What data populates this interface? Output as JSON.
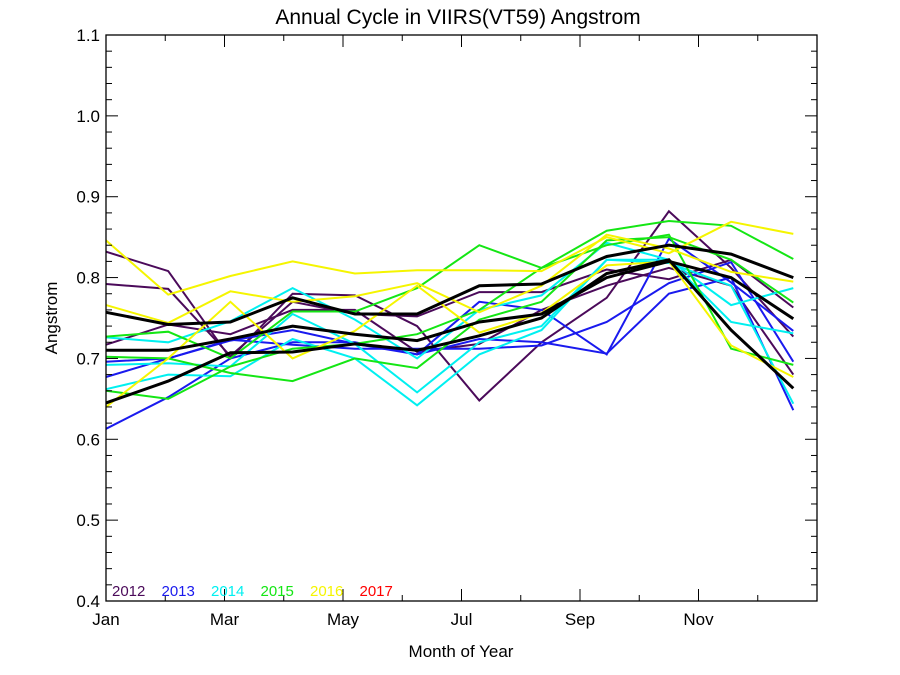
{
  "chart_data": {
    "type": "line",
    "title": "Annual Cycle in VIIRS(VT59) Angstrom",
    "xlabel": "Month of Year",
    "ylabel": "Angstrom",
    "ylim": [
      0.4,
      1.1
    ],
    "xlim": [
      0,
      12
    ],
    "yticks": [
      {
        "value": 0.4,
        "label": "0.4"
      },
      {
        "value": 0.5,
        "label": "0.5"
      },
      {
        "value": 0.6,
        "label": "0.6"
      },
      {
        "value": 0.7,
        "label": "0.7"
      },
      {
        "value": 0.8,
        "label": "0.8"
      },
      {
        "value": 0.9,
        "label": "0.9"
      },
      {
        "value": 1.0,
        "label": "1.0"
      },
      {
        "value": 1.1,
        "label": "1.1"
      }
    ],
    "xticks": [
      {
        "value": 0,
        "label": "Jan"
      },
      {
        "value": 2,
        "label": "Mar"
      },
      {
        "value": 4,
        "label": "May"
      },
      {
        "value": 6,
        "label": "Jul"
      },
      {
        "value": 8,
        "label": "Sep"
      },
      {
        "value": 10,
        "label": "Nov"
      }
    ],
    "x": [
      0.0,
      1.05,
      2.1,
      3.15,
      4.2,
      5.25,
      6.3,
      7.35,
      8.45,
      9.5,
      10.55,
      11.6
    ],
    "grid": false,
    "legend_position": "bottom-left",
    "legend": [
      {
        "label": "2012",
        "color": "#4b0a5a"
      },
      {
        "label": "2013",
        "color": "#1a1aee"
      },
      {
        "label": "2014",
        "color": "#00f0f0"
      },
      {
        "label": "2015",
        "color": "#14e614"
      },
      {
        "label": "2016",
        "color": "#f5f500"
      },
      {
        "label": "2017",
        "color": "#ff0000"
      }
    ],
    "series": [
      {
        "name": "2012-a",
        "year": "2012",
        "color": "#4b0a5a",
        "width": 2,
        "values": [
          0.832,
          0.808,
          0.7,
          0.78,
          0.778,
          0.74,
          0.648,
          0.72,
          0.775,
          0.882,
          0.812,
          0.727
        ]
      },
      {
        "name": "2012-b",
        "year": "2012",
        "color": "#4b0a5a",
        "width": 2,
        "values": [
          0.792,
          0.786,
          0.703,
          0.77,
          0.755,
          0.752,
          0.782,
          0.782,
          0.81,
          0.798,
          0.822,
          0.763
        ]
      },
      {
        "name": "2012-c",
        "year": "2012",
        "color": "#4b0a5a",
        "width": 2,
        "values": [
          0.717,
          0.742,
          0.73,
          0.76,
          0.76,
          0.708,
          0.718,
          0.76,
          0.79,
          0.812,
          0.79,
          0.68
        ]
      },
      {
        "name": "2013-a",
        "year": "2013",
        "color": "#1a1aee",
        "width": 2,
        "values": [
          0.677,
          0.7,
          0.722,
          0.735,
          0.718,
          0.705,
          0.77,
          0.76,
          0.705,
          0.848,
          0.794,
          0.734
        ]
      },
      {
        "name": "2013-b",
        "year": "2013",
        "color": "#1a1aee",
        "width": 2,
        "values": [
          0.696,
          0.7,
          0.723,
          0.717,
          0.712,
          0.712,
          0.712,
          0.716,
          0.745,
          0.793,
          0.819,
          0.696
        ]
      },
      {
        "name": "2013-c",
        "year": "2013",
        "color": "#1a1aee",
        "width": 2,
        "values": [
          0.613,
          0.652,
          0.7,
          0.72,
          0.72,
          0.705,
          0.724,
          0.72,
          0.706,
          0.78,
          0.8,
          0.636
        ]
      },
      {
        "name": "2014-a",
        "year": "2014",
        "color": "#00f0f0",
        "width": 2,
        "values": [
          0.726,
          0.72,
          0.746,
          0.787,
          0.748,
          0.7,
          0.76,
          0.778,
          0.843,
          0.822,
          0.766,
          0.787
        ]
      },
      {
        "name": "2014-b",
        "year": "2014",
        "color": "#00f0f0",
        "width": 2,
        "values": [
          0.692,
          0.694,
          0.69,
          0.755,
          0.718,
          0.658,
          0.72,
          0.74,
          0.822,
          0.822,
          0.745,
          0.731
        ]
      },
      {
        "name": "2014-c",
        "year": "2014",
        "color": "#00f0f0",
        "width": 2,
        "values": [
          0.662,
          0.68,
          0.678,
          0.724,
          0.7,
          0.642,
          0.705,
          0.735,
          0.822,
          0.818,
          0.79,
          0.644
        ]
      },
      {
        "name": "2015-a",
        "year": "2015",
        "color": "#14e614",
        "width": 2,
        "values": [
          0.727,
          0.733,
          0.7,
          0.758,
          0.758,
          0.787,
          0.84,
          0.812,
          0.858,
          0.87,
          0.864,
          0.823
        ]
      },
      {
        "name": "2015-b",
        "year": "2015",
        "color": "#14e614",
        "width": 2,
        "values": [
          0.702,
          0.7,
          0.682,
          0.672,
          0.7,
          0.688,
          0.748,
          0.77,
          0.846,
          0.85,
          0.822,
          0.769
        ]
      },
      {
        "name": "2015-c",
        "year": "2015",
        "color": "#14e614",
        "width": 2,
        "values": [
          0.66,
          0.65,
          0.69,
          0.712,
          0.718,
          0.73,
          0.76,
          0.812,
          0.84,
          0.853,
          0.712,
          0.692
        ]
      },
      {
        "name": "2016-a",
        "year": "2016",
        "color": "#f5f500",
        "width": 2,
        "values": [
          0.846,
          0.779,
          0.802,
          0.82,
          0.805,
          0.809,
          0.809,
          0.808,
          0.85,
          0.83,
          0.869,
          0.854
        ]
      },
      {
        "name": "2016-b",
        "year": "2016",
        "color": "#f5f500",
        "width": 2,
        "values": [
          0.766,
          0.744,
          0.783,
          0.77,
          0.777,
          0.793,
          0.757,
          0.79,
          0.853,
          0.836,
          0.807,
          0.795
        ]
      },
      {
        "name": "2016-c",
        "year": "2016",
        "color": "#f5f500",
        "width": 2,
        "values": [
          0.64,
          0.7,
          0.77,
          0.7,
          0.734,
          0.79,
          0.732,
          0.756,
          0.815,
          0.82,
          0.716,
          0.677
        ]
      },
      {
        "name": "mean-a",
        "year": "mean",
        "color": "#000000",
        "width": 3,
        "values": [
          0.757,
          0.742,
          0.745,
          0.775,
          0.755,
          0.755,
          0.79,
          0.792,
          0.826,
          0.84,
          0.829,
          0.8
        ]
      },
      {
        "name": "mean-b",
        "year": "mean",
        "color": "#000000",
        "width": 3,
        "values": [
          0.71,
          0.71,
          0.724,
          0.74,
          0.73,
          0.722,
          0.745,
          0.755,
          0.8,
          0.82,
          0.8,
          0.749
        ]
      },
      {
        "name": "mean-c",
        "year": "mean",
        "color": "#000000",
        "width": 3,
        "values": [
          0.645,
          0.672,
          0.707,
          0.708,
          0.718,
          0.71,
          0.728,
          0.75,
          0.805,
          0.822,
          0.735,
          0.663
        ]
      }
    ]
  }
}
